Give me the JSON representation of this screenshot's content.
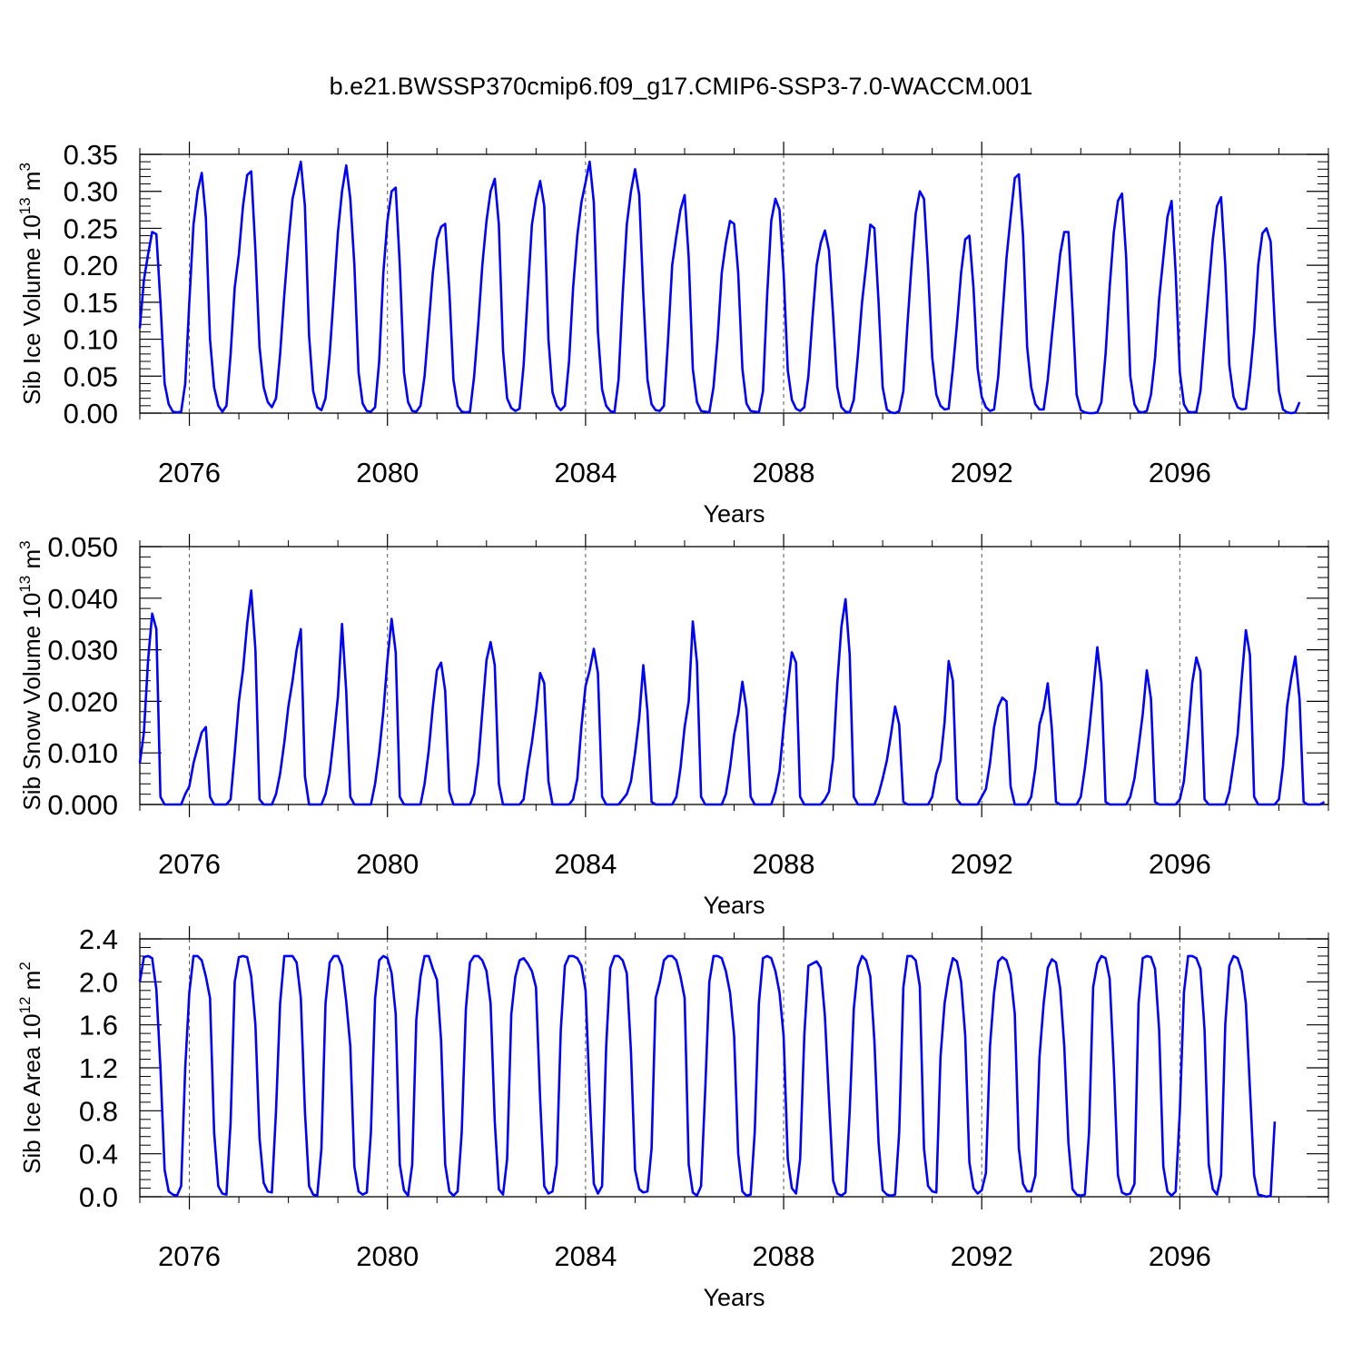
{
  "figure": {
    "title": "b.e21.BWSSP370cmip6.f09_g17.CMIP6-SSP3-7.0-WACCM.001",
    "line_color": "#0000ff",
    "grid_color": "#555555"
  },
  "chart_data": [
    {
      "type": "line",
      "title": "",
      "xlabel": "Years",
      "ylabel": "Sib Ice Volume 10",
      "ylabel_exponent": "13",
      "ylabel_unit": "m",
      "ylabel_unit_exponent": "3",
      "xlim": [
        2075.0,
        2099.0
      ],
      "ylim": [
        0.0,
        0.35
      ],
      "xticks": [
        2076,
        2080,
        2084,
        2088,
        2092,
        2096
      ],
      "xtick_labels": [
        "2076",
        "2080",
        "2084",
        "2088",
        "2092",
        "2096"
      ],
      "yticks": [
        0.0,
        0.05,
        0.1,
        0.15,
        0.2,
        0.25,
        0.3,
        0.35
      ],
      "ytick_labels": [
        "0.00",
        "0.05",
        "0.10",
        "0.15",
        "0.20",
        "0.25",
        "0.30",
        "0.35"
      ],
      "vertical_dashed_grid": true,
      "series": [
        {
          "start_x": 2075.0,
          "step": 0.0833333,
          "values": [
            0.115,
            0.18,
            0.215,
            0.245,
            0.242,
            0.15,
            0.04,
            0.012,
            0.002,
            0.001,
            0.002,
            0.04,
            0.15,
            0.255,
            0.3,
            0.325,
            0.265,
            0.1,
            0.035,
            0.01,
            0.002,
            0.01,
            0.08,
            0.17,
            0.215,
            0.28,
            0.322,
            0.327,
            0.22,
            0.09,
            0.035,
            0.015,
            0.008,
            0.02,
            0.08,
            0.16,
            0.23,
            0.29,
            0.315,
            0.34,
            0.28,
            0.105,
            0.03,
            0.008,
            0.004,
            0.02,
            0.08,
            0.16,
            0.245,
            0.3,
            0.335,
            0.29,
            0.2,
            0.055,
            0.013,
            0.003,
            0.002,
            0.008,
            0.07,
            0.19,
            0.26,
            0.3,
            0.305,
            0.2,
            0.055,
            0.015,
            0.003,
            0.002,
            0.01,
            0.05,
            0.12,
            0.19,
            0.235,
            0.252,
            0.256,
            0.165,
            0.045,
            0.01,
            0.002,
            0.001,
            0.002,
            0.05,
            0.12,
            0.2,
            0.26,
            0.3,
            0.317,
            0.255,
            0.085,
            0.02,
            0.007,
            0.003,
            0.006,
            0.065,
            0.16,
            0.255,
            0.29,
            0.314,
            0.28,
            0.1,
            0.028,
            0.01,
            0.004,
            0.01,
            0.07,
            0.17,
            0.24,
            0.285,
            0.312,
            0.34,
            0.285,
            0.11,
            0.032,
            0.01,
            0.003,
            0.001,
            0.045,
            0.16,
            0.255,
            0.3,
            0.33,
            0.295,
            0.16,
            0.045,
            0.012,
            0.004,
            0.003,
            0.01,
            0.1,
            0.2,
            0.24,
            0.275,
            0.295,
            0.21,
            0.06,
            0.015,
            0.003,
            0.002,
            0.001,
            0.035,
            0.1,
            0.19,
            0.23,
            0.26,
            0.256,
            0.19,
            0.06,
            0.013,
            0.003,
            0.002,
            0.001,
            0.03,
            0.16,
            0.26,
            0.29,
            0.275,
            0.19,
            0.058,
            0.018,
            0.006,
            0.003,
            0.008,
            0.05,
            0.13,
            0.2,
            0.23,
            0.247,
            0.22,
            0.13,
            0.035,
            0.008,
            0.002,
            0.001,
            0.018,
            0.08,
            0.15,
            0.2,
            0.255,
            0.25,
            0.15,
            0.035,
            0.005,
            0.001,
            0.0,
            0.003,
            0.03,
            0.12,
            0.2,
            0.27,
            0.3,
            0.29,
            0.195,
            0.075,
            0.025,
            0.01,
            0.005,
            0.006,
            0.06,
            0.12,
            0.19,
            0.235,
            0.24,
            0.17,
            0.06,
            0.022,
            0.008,
            0.003,
            0.005,
            0.05,
            0.13,
            0.21,
            0.265,
            0.318,
            0.323,
            0.24,
            0.09,
            0.035,
            0.012,
            0.005,
            0.005,
            0.045,
            0.105,
            0.16,
            0.215,
            0.245,
            0.245,
            0.14,
            0.025,
            0.004,
            0.001,
            0.0,
            0.0,
            0.001,
            0.015,
            0.08,
            0.17,
            0.245,
            0.287,
            0.297,
            0.21,
            0.05,
            0.012,
            0.002,
            0.001,
            0.003,
            0.025,
            0.075,
            0.155,
            0.21,
            0.265,
            0.287,
            0.19,
            0.055,
            0.012,
            0.002,
            0.001,
            0.002,
            0.03,
            0.1,
            0.17,
            0.235,
            0.28,
            0.292,
            0.2,
            0.065,
            0.022,
            0.008,
            0.005,
            0.006,
            0.05,
            0.11,
            0.2,
            0.243,
            0.25,
            0.232,
            0.12,
            0.03,
            0.005,
            0.001,
            0.0,
            0.001,
            0.015
          ]
        }
      ]
    },
    {
      "type": "line",
      "title": "",
      "xlabel": "Years",
      "ylabel": "Sib Snow Volume 10",
      "ylabel_exponent": "13",
      "ylabel_unit": "m",
      "ylabel_unit_exponent": "3",
      "xlim": [
        2075.0,
        2099.0
      ],
      "ylim": [
        0.0,
        0.05
      ],
      "xticks": [
        2076,
        2080,
        2084,
        2088,
        2092,
        2096
      ],
      "xtick_labels": [
        "2076",
        "2080",
        "2084",
        "2088",
        "2092",
        "2096"
      ],
      "yticks": [
        0.0,
        0.01,
        0.02,
        0.03,
        0.04,
        0.05
      ],
      "ytick_labels": [
        "0.000",
        "0.010",
        "0.020",
        "0.030",
        "0.040",
        "0.050"
      ],
      "vertical_dashed_grid": true,
      "series": [
        {
          "start_x": 2075.0,
          "step": 0.0833333,
          "values": [
            0.008,
            0.014,
            0.028,
            0.037,
            0.034,
            0.0015,
            0.0,
            0.0,
            0.0,
            0.0,
            0.0,
            0.002,
            0.0035,
            0.008,
            0.011,
            0.014,
            0.015,
            0.0015,
            0.0,
            0.0,
            0.0,
            0.0,
            0.001,
            0.01,
            0.02,
            0.026,
            0.035,
            0.0415,
            0.03,
            0.001,
            0.0,
            0.0,
            0.0,
            0.002,
            0.006,
            0.012,
            0.019,
            0.024,
            0.03,
            0.034,
            0.0055,
            0.0,
            0.0,
            0.0,
            0.0,
            0.002,
            0.006,
            0.013,
            0.021,
            0.035,
            0.022,
            0.0015,
            0.0,
            0.0,
            0.0,
            0.0,
            0.0,
            0.004,
            0.01,
            0.018,
            0.028,
            0.036,
            0.0295,
            0.0015,
            0.0,
            0.0,
            0.0,
            0.0,
            0.0,
            0.004,
            0.0105,
            0.019,
            0.026,
            0.0275,
            0.022,
            0.0025,
            0.0,
            0.0,
            0.0,
            0.0,
            0.0,
            0.002,
            0.008,
            0.018,
            0.028,
            0.0315,
            0.027,
            0.004,
            0.0,
            0.0,
            0.0,
            0.0,
            0.0,
            0.001,
            0.007,
            0.012,
            0.018,
            0.0255,
            0.0235,
            0.0045,
            0.0,
            0.0,
            0.0,
            0.0,
            0.0,
            0.001,
            0.005,
            0.015,
            0.023,
            0.026,
            0.0302,
            0.0255,
            0.0015,
            0.0,
            0.0,
            0.0,
            0.0,
            0.001,
            0.002,
            0.0045,
            0.01,
            0.0168,
            0.027,
            0.018,
            0.0005,
            0.0,
            0.0,
            0.0,
            0.0,
            0.0,
            0.0015,
            0.007,
            0.015,
            0.02,
            0.0355,
            0.0275,
            0.0015,
            0.0,
            0.0,
            0.0,
            0.0,
            0.0,
            0.002,
            0.007,
            0.0135,
            0.0175,
            0.0238,
            0.0185,
            0.0015,
            0.0,
            0.0,
            0.0,
            0.0,
            0.0,
            0.0025,
            0.0065,
            0.015,
            0.023,
            0.0295,
            0.0275,
            0.0015,
            0.0,
            0.0,
            0.0,
            0.0,
            0.0,
            0.001,
            0.0025,
            0.009,
            0.0235,
            0.0345,
            0.0398,
            0.029,
            0.0015,
            0.0,
            0.0,
            0.0,
            0.0,
            0.0,
            0.002,
            0.005,
            0.0085,
            0.0135,
            0.019,
            0.0155,
            0.0005,
            0.0,
            0.0,
            0.0,
            0.0,
            0.0,
            0.0,
            0.0015,
            0.006,
            0.0085,
            0.016,
            0.0278,
            0.024,
            0.001,
            0.0,
            0.0,
            0.0,
            0.0,
            0.0,
            0.0015,
            0.003,
            0.008,
            0.015,
            0.019,
            0.0207,
            0.02,
            0.0035,
            0.0,
            0.0,
            0.0,
            0.0,
            0.0015,
            0.007,
            0.0155,
            0.0185,
            0.0235,
            0.0145,
            0.0005,
            0.0,
            0.0,
            0.0,
            0.0,
            0.0,
            0.0015,
            0.007,
            0.014,
            0.022,
            0.0305,
            0.0235,
            0.0005,
            0.0,
            0.0,
            0.0,
            0.0,
            0.0,
            0.0015,
            0.005,
            0.011,
            0.0175,
            0.026,
            0.0205,
            0.0005,
            0.0,
            0.0,
            0.0,
            0.0,
            0.0,
            0.001,
            0.0045,
            0.0135,
            0.0235,
            0.0285,
            0.0258,
            0.001,
            0.0,
            0.0,
            0.0,
            0.0,
            0.0,
            0.0025,
            0.008,
            0.0135,
            0.0245,
            0.0338,
            0.029,
            0.0015,
            0.0,
            0.0,
            0.0,
            0.0,
            0.0,
            0.001,
            0.0075,
            0.019,
            0.0245,
            0.0287,
            0.0205,
            0.0005,
            0.0,
            0.0,
            0.0,
            0.0,
            0.0005
          ]
        }
      ]
    },
    {
      "type": "line",
      "title": "",
      "xlabel": "Years",
      "ylabel": "Sib Ice Area 10",
      "ylabel_exponent": "12",
      "ylabel_unit": "m",
      "ylabel_unit_exponent": "2",
      "xlim": [
        2075.0,
        2099.0
      ],
      "ylim": [
        0.0,
        2.4
      ],
      "xticks": [
        2076,
        2080,
        2084,
        2088,
        2092,
        2096
      ],
      "xtick_labels": [
        "2076",
        "2080",
        "2084",
        "2088",
        "2092",
        "2096"
      ],
      "yticks": [
        0.0,
        0.4,
        0.8,
        1.2,
        1.6,
        2.0,
        2.4
      ],
      "ytick_labels": [
        "0.0",
        "0.4",
        "0.8",
        "1.2",
        "1.6",
        "2.0",
        "2.4"
      ],
      "vertical_dashed_grid": true,
      "series": [
        {
          "start_x": 2075.0,
          "step": 0.0833333,
          "values": [
            2.0,
            2.23,
            2.24,
            2.22,
            1.93,
            1.2,
            0.25,
            0.05,
            0.02,
            0.01,
            0.1,
            1.2,
            1.9,
            2.24,
            2.24,
            2.2,
            2.05,
            1.85,
            0.6,
            0.1,
            0.03,
            0.02,
            0.7,
            2.0,
            2.23,
            2.24,
            2.23,
            2.05,
            1.6,
            0.55,
            0.13,
            0.05,
            0.04,
            0.8,
            1.8,
            2.24,
            2.24,
            2.24,
            2.18,
            1.85,
            0.8,
            0.1,
            0.02,
            0.01,
            0.45,
            1.8,
            2.18,
            2.24,
            2.24,
            2.15,
            1.82,
            1.4,
            0.28,
            0.05,
            0.02,
            0.04,
            0.6,
            1.85,
            2.2,
            2.24,
            2.22,
            2.08,
            1.7,
            0.3,
            0.06,
            0.01,
            0.3,
            1.65,
            2.05,
            2.24,
            2.24,
            2.12,
            2.02,
            1.45,
            0.3,
            0.05,
            0.01,
            0.05,
            0.6,
            1.75,
            2.18,
            2.24,
            2.24,
            2.2,
            2.1,
            1.8,
            0.7,
            0.07,
            0.02,
            0.35,
            1.7,
            2.05,
            2.2,
            2.22,
            2.17,
            2.1,
            1.95,
            0.9,
            0.1,
            0.03,
            0.05,
            0.3,
            1.55,
            2.15,
            2.24,
            2.24,
            2.22,
            2.15,
            1.92,
            0.95,
            0.12,
            0.03,
            0.1,
            1.4,
            2.13,
            2.24,
            2.24,
            2.2,
            2.08,
            1.35,
            0.25,
            0.07,
            0.04,
            0.05,
            0.45,
            1.85,
            2.0,
            2.2,
            2.24,
            2.24,
            2.2,
            2.05,
            1.85,
            0.3,
            0.04,
            0.01,
            0.1,
            1.0,
            2.0,
            2.24,
            2.24,
            2.22,
            2.1,
            1.9,
            1.5,
            0.4,
            0.05,
            0.01,
            0.02,
            0.6,
            1.8,
            2.22,
            2.24,
            2.22,
            2.1,
            1.9,
            1.5,
            0.35,
            0.08,
            0.03,
            0.35,
            1.5,
            2.15,
            2.17,
            2.19,
            2.13,
            1.68,
            0.9,
            0.15,
            0.03,
            0.01,
            0.04,
            0.8,
            1.75,
            2.14,
            2.24,
            2.2,
            2.05,
            1.45,
            0.5,
            0.06,
            0.02,
            0.01,
            0.02,
            0.6,
            1.95,
            2.24,
            2.24,
            2.2,
            1.96,
            0.45,
            0.1,
            0.05,
            0.04,
            1.3,
            1.8,
            2.05,
            2.22,
            2.19,
            2.0,
            1.5,
            0.32,
            0.08,
            0.03,
            0.06,
            0.22,
            1.4,
            1.9,
            2.19,
            2.23,
            2.2,
            2.07,
            1.7,
            0.45,
            0.12,
            0.05,
            0.05,
            0.2,
            1.3,
            1.8,
            2.13,
            2.21,
            2.18,
            1.94,
            1.4,
            0.5,
            0.07,
            0.02,
            0.01,
            0.02,
            0.6,
            1.95,
            2.17,
            2.24,
            2.22,
            2.03,
            1.2,
            0.2,
            0.04,
            0.02,
            0.03,
            0.12,
            1.8,
            2.22,
            2.24,
            2.23,
            2.12,
            1.55,
            0.28,
            0.05,
            0.01,
            0.05,
            0.8,
            1.9,
            2.24,
            2.24,
            2.22,
            2.12,
            1.55,
            0.3,
            0.07,
            0.02,
            0.2,
            1.6,
            2.15,
            2.24,
            2.22,
            2.1,
            1.8,
            1.0,
            0.2,
            0.02,
            0.01,
            0.0,
            0.01,
            0.7
          ]
        }
      ]
    }
  ]
}
